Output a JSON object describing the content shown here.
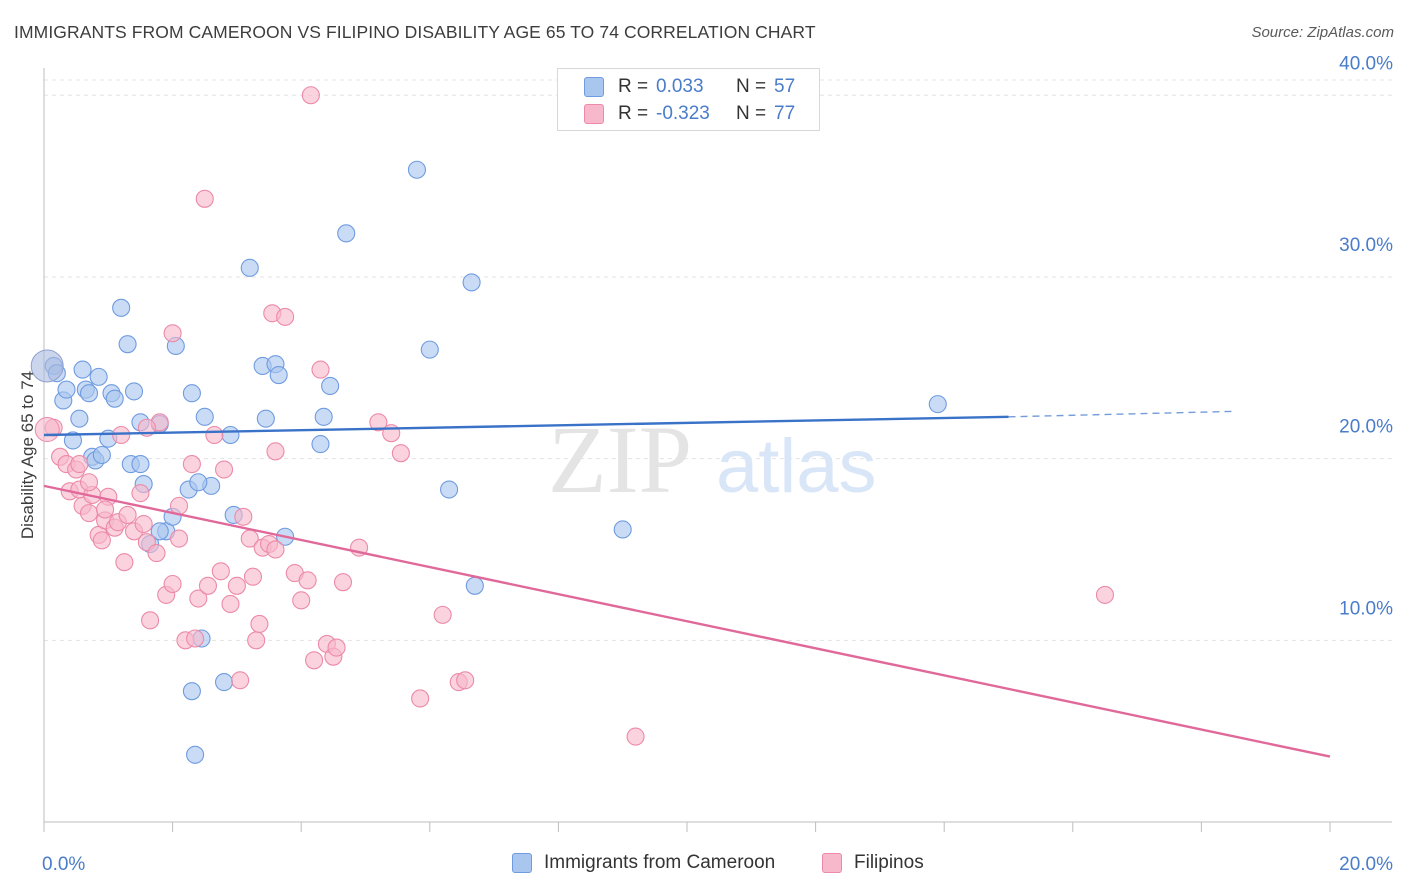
{
  "title": "IMMIGRANTS FROM CAMEROON VS FILIPINO DISABILITY AGE 65 TO 74 CORRELATION CHART",
  "source": "Source: ZipAtlas.com",
  "watermark": {
    "zip": "ZIP",
    "atlas": "atlas"
  },
  "legend": {
    "rows": [
      {
        "r_label": "R =",
        "r_value": "0.033",
        "n_label": "N =",
        "n_value": "57",
        "color": "#a9c6ef",
        "edge": "#6f9be0"
      },
      {
        "r_label": "R =",
        "r_value": "-0.323",
        "n_label": "N =",
        "n_value": "77",
        "color": "#f7b8cb",
        "edge": "#ec8aa8"
      }
    ]
  },
  "bottom_legend": [
    {
      "label": "Immigrants from Cameroon",
      "color": "#a9c6ef",
      "edge": "#6f9be0"
    },
    {
      "label": "Filipinos",
      "color": "#f7b8cb",
      "edge": "#ec8aa8"
    }
  ],
  "chart_data": {
    "type": "scatter",
    "title": "IMMIGRANTS FROM CAMEROON VS FILIPINO DISABILITY AGE 65 TO 74 CORRELATION CHART",
    "xlabel": "",
    "ylabel": "Disability Age 65 to 74",
    "xlim": [
      0,
      20
    ],
    "ylim": [
      0,
      41.5
    ],
    "x_tick_labels": [
      "0.0%",
      "20.0%"
    ],
    "y_ticks": [
      10,
      20,
      30,
      40
    ],
    "y_tick_labels": [
      "10.0%",
      "20.0%",
      "30.0%",
      "40.0%"
    ],
    "grid": true,
    "legend_position": "top-center",
    "series": [
      {
        "name": "Immigrants from Cameroon",
        "color": "#6f9be0",
        "fill": "#a9c6ef",
        "trend": {
          "x0": 0,
          "y0": 21.3,
          "x1": 15.0,
          "y1": 22.3,
          "dashed_to_x": 18.5,
          "dashed_to_y": 22.6,
          "color": "#3a72c8"
        },
        "points": [
          [
            0.15,
            25.1
          ],
          [
            0.2,
            24.7
          ],
          [
            0.3,
            23.2
          ],
          [
            0.35,
            23.8
          ],
          [
            0.45,
            21.0
          ],
          [
            0.55,
            22.2
          ],
          [
            0.6,
            24.9
          ],
          [
            0.65,
            23.8
          ],
          [
            0.75,
            20.1
          ],
          [
            0.8,
            19.9
          ],
          [
            0.9,
            20.2
          ],
          [
            1.0,
            21.1
          ],
          [
            1.05,
            23.6
          ],
          [
            1.1,
            23.3
          ],
          [
            1.2,
            28.3
          ],
          [
            1.3,
            26.3
          ],
          [
            1.35,
            19.7
          ],
          [
            1.4,
            23.7
          ],
          [
            1.5,
            19.7
          ],
          [
            1.55,
            18.6
          ],
          [
            1.8,
            21.9
          ],
          [
            1.9,
            16.0
          ],
          [
            2.0,
            16.8
          ],
          [
            2.05,
            26.2
          ],
          [
            2.25,
            18.3
          ],
          [
            2.3,
            23.6
          ],
          [
            2.5,
            22.3
          ],
          [
            2.3,
            7.2
          ],
          [
            2.35,
            3.7
          ],
          [
            2.45,
            10.1
          ],
          [
            2.6,
            18.5
          ],
          [
            2.8,
            7.7
          ],
          [
            2.9,
            21.3
          ],
          [
            2.95,
            16.9
          ],
          [
            3.2,
            30.5
          ],
          [
            3.4,
            25.1
          ],
          [
            3.45,
            22.2
          ],
          [
            3.6,
            25.2
          ],
          [
            3.65,
            24.6
          ],
          [
            3.75,
            15.7
          ],
          [
            4.3,
            20.8
          ],
          [
            4.35,
            22.3
          ],
          [
            4.45,
            24.0
          ],
          [
            4.7,
            32.4
          ],
          [
            5.8,
            35.9
          ],
          [
            6.0,
            26.0
          ],
          [
            6.3,
            18.3
          ],
          [
            6.65,
            29.7
          ],
          [
            6.7,
            13.0
          ],
          [
            9.0,
            16.1
          ],
          [
            13.9,
            23.0
          ],
          [
            1.65,
            15.3
          ],
          [
            1.8,
            16.0
          ],
          [
            0.85,
            24.5
          ],
          [
            0.7,
            23.6
          ],
          [
            1.5,
            22.0
          ],
          [
            2.4,
            18.7
          ]
        ]
      },
      {
        "name": "Filipinos",
        "color": "#ec8aa8",
        "fill": "#f7b8cb",
        "trend": {
          "x0": 0,
          "y0": 18.5,
          "x1": 20.0,
          "y1": 3.6,
          "color": "#e0699a"
        },
        "points": [
          [
            0.15,
            21.7
          ],
          [
            0.25,
            20.1
          ],
          [
            0.35,
            19.7
          ],
          [
            0.4,
            18.2
          ],
          [
            0.5,
            19.4
          ],
          [
            0.55,
            18.3
          ],
          [
            0.6,
            17.4
          ],
          [
            0.7,
            17.0
          ],
          [
            0.75,
            18.0
          ],
          [
            0.85,
            15.8
          ],
          [
            0.9,
            15.5
          ],
          [
            0.95,
            16.6
          ],
          [
            1.0,
            17.9
          ],
          [
            1.1,
            16.2
          ],
          [
            1.15,
            16.5
          ],
          [
            1.25,
            14.3
          ],
          [
            1.3,
            16.9
          ],
          [
            1.4,
            16.0
          ],
          [
            1.5,
            18.1
          ],
          [
            1.55,
            16.4
          ],
          [
            1.6,
            15.4
          ],
          [
            1.65,
            11.1
          ],
          [
            1.75,
            14.8
          ],
          [
            1.8,
            22.0
          ],
          [
            1.9,
            12.5
          ],
          [
            2.0,
            13.1
          ],
          [
            2.1,
            17.4
          ],
          [
            2.2,
            10.0
          ],
          [
            2.3,
            19.7
          ],
          [
            2.35,
            10.1
          ],
          [
            2.4,
            12.3
          ],
          [
            2.5,
            34.3
          ],
          [
            2.55,
            13.0
          ],
          [
            2.65,
            21.3
          ],
          [
            2.75,
            13.8
          ],
          [
            2.8,
            19.4
          ],
          [
            2.9,
            12.0
          ],
          [
            3.0,
            13.0
          ],
          [
            3.05,
            7.8
          ],
          [
            3.1,
            16.8
          ],
          [
            3.2,
            15.6
          ],
          [
            3.25,
            13.5
          ],
          [
            3.3,
            10.0
          ],
          [
            3.35,
            10.9
          ],
          [
            3.4,
            15.1
          ],
          [
            3.5,
            15.3
          ],
          [
            3.55,
            28.0
          ],
          [
            3.6,
            20.4
          ],
          [
            3.75,
            27.8
          ],
          [
            3.9,
            13.7
          ],
          [
            4.0,
            12.2
          ],
          [
            4.1,
            13.3
          ],
          [
            4.2,
            8.9
          ],
          [
            4.3,
            24.9
          ],
          [
            4.4,
            9.8
          ],
          [
            4.5,
            9.1
          ],
          [
            4.55,
            9.6
          ],
          [
            4.65,
            13.2
          ],
          [
            4.9,
            15.1
          ],
          [
            4.15,
            40.0
          ],
          [
            5.2,
            22.0
          ],
          [
            5.4,
            21.4
          ],
          [
            5.55,
            20.3
          ],
          [
            5.85,
            6.8
          ],
          [
            6.2,
            11.4
          ],
          [
            6.45,
            7.7
          ],
          [
            6.55,
            7.8
          ],
          [
            9.2,
            4.7
          ],
          [
            16.5,
            12.5
          ],
          [
            2.0,
            26.9
          ],
          [
            1.6,
            21.7
          ],
          [
            1.2,
            21.3
          ],
          [
            0.55,
            19.7
          ],
          [
            0.7,
            18.7
          ],
          [
            0.95,
            17.2
          ],
          [
            3.6,
            15.0
          ],
          [
            2.1,
            15.6
          ]
        ]
      }
    ]
  }
}
